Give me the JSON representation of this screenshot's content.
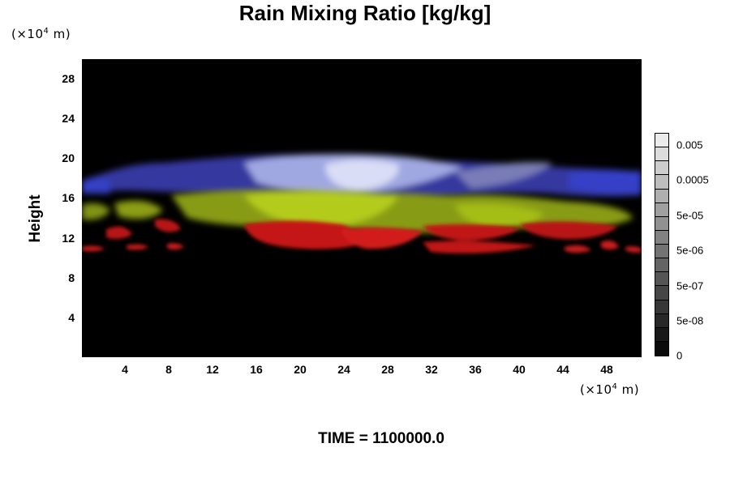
{
  "chart_data": {
    "type": "heatmap",
    "title": "Rain Mixing Ratio [kg/kg]",
    "ylabel": "Height",
    "y_unit_prefix": "(×10",
    "y_unit_exp": "4",
    "y_unit_suffix": " m)",
    "x_unit_prefix": "(×10",
    "x_unit_exp": "4",
    "x_unit_suffix": " m)",
    "xlim": [
      0,
      51
    ],
    "ylim": [
      0,
      30
    ],
    "xticks": [
      "4",
      "8",
      "12",
      "16",
      "20",
      "24",
      "28",
      "32",
      "36",
      "40",
      "44",
      "48"
    ],
    "yticks": [
      "4",
      "8",
      "12",
      "16",
      "20",
      "24",
      "28"
    ],
    "colorbar": {
      "labels": [
        "0.005",
        "0.0005",
        "5e-05",
        "5e-06",
        "5e-07",
        "5e-08",
        "0"
      ],
      "levels": 16
    },
    "layers": [
      {
        "color": "#cc1a1a",
        "base_height": 11,
        "top_height": 13
      },
      {
        "color": "#a8c21a",
        "base_height": 13,
        "top_height": 16.5
      },
      {
        "color": "#9aa0e0",
        "base_height": 16,
        "top_height": 20
      }
    ],
    "background_color": "#000000",
    "footer": "TIME = 1100000.0"
  }
}
